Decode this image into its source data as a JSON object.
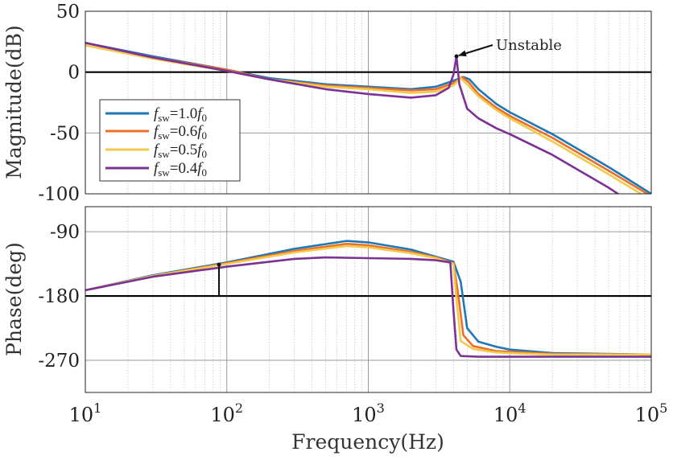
{
  "chart_data": {
    "type": "line",
    "xlabel": "Frequency(Hz)",
    "x_scale": "log",
    "xlim": [
      10,
      100000
    ],
    "x_ticks": [
      {
        "value": 10,
        "base": "10",
        "exp": "1"
      },
      {
        "value": 100,
        "base": "10",
        "exp": "2"
      },
      {
        "value": 1000,
        "base": "10",
        "exp": "3"
      },
      {
        "value": 10000,
        "base": "10",
        "exp": "4"
      },
      {
        "value": 100000,
        "base": "10",
        "exp": "5"
      }
    ],
    "grid": true,
    "legend_position": "left",
    "legend": [
      {
        "italic": "f",
        "sub": "sw",
        "text": "=1.0",
        "italic2": "f",
        "sub2": "0"
      },
      {
        "italic": "f",
        "sub": "sw",
        "text": "=0.6",
        "italic2": "f",
        "sub2": "0"
      },
      {
        "italic": "f",
        "sub": "sw",
        "text": "=0.5",
        "italic2": "f",
        "sub2": "0"
      },
      {
        "italic": "f",
        "sub": "sw",
        "text": "=0.4",
        "italic2": "f",
        "sub2": "0"
      }
    ],
    "colors": [
      "#1f77b4",
      "#e8702a",
      "#f2c94c",
      "#7b3294"
    ],
    "magnitude": {
      "ylabel": "Magnitude(dB)",
      "ylim": [
        -100,
        50
      ],
      "y_ticks": [
        50,
        0,
        -50,
        -100
      ],
      "reference_line": 0,
      "annotation": {
        "text": "Unstable",
        "x": 4200,
        "y": 13
      },
      "series": [
        {
          "points": [
            [
              10,
              24
            ],
            [
              30,
              13
            ],
            [
              100,
              2
            ],
            [
              200,
              -5
            ],
            [
              500,
              -10
            ],
            [
              1000,
              -12
            ],
            [
              2000,
              -14
            ],
            [
              3000,
              -12
            ],
            [
              4000,
              -7
            ],
            [
              4700,
              -4
            ],
            [
              5200,
              -6
            ],
            [
              6000,
              -14
            ],
            [
              8000,
              -26
            ],
            [
              10000,
              -33
            ],
            [
              20000,
              -51
            ],
            [
              50000,
              -78
            ],
            [
              100000,
              -100
            ]
          ]
        },
        {
          "points": [
            [
              10,
              24
            ],
            [
              30,
              12
            ],
            [
              100,
              2
            ],
            [
              200,
              -6
            ],
            [
              500,
              -11
            ],
            [
              1000,
              -13
            ],
            [
              2000,
              -15
            ],
            [
              3000,
              -14
            ],
            [
              4000,
              -9
            ],
            [
              4600,
              -4
            ],
            [
              5100,
              -8
            ],
            [
              6000,
              -18
            ],
            [
              8000,
              -29
            ],
            [
              10000,
              -36
            ],
            [
              20000,
              -54
            ],
            [
              50000,
              -81
            ],
            [
              100000,
              -102
            ]
          ]
        },
        {
          "points": [
            [
              10,
              22
            ],
            [
              30,
              11
            ],
            [
              100,
              1
            ],
            [
              200,
              -6
            ],
            [
              500,
              -12
            ],
            [
              1000,
              -14
            ],
            [
              2000,
              -17
            ],
            [
              3000,
              -16
            ],
            [
              4000,
              -11
            ],
            [
              4500,
              -5
            ],
            [
              5000,
              -10
            ],
            [
              6000,
              -20
            ],
            [
              8000,
              -31
            ],
            [
              10000,
              -38
            ],
            [
              20000,
              -57
            ],
            [
              50000,
              -84
            ],
            [
              100000,
              -105
            ]
          ]
        },
        {
          "points": [
            [
              10,
              24
            ],
            [
              30,
              12
            ],
            [
              100,
              1
            ],
            [
              200,
              -6
            ],
            [
              500,
              -14
            ],
            [
              1000,
              -18
            ],
            [
              2000,
              -21
            ],
            [
              3000,
              -19
            ],
            [
              3700,
              -13
            ],
            [
              4000,
              -2
            ],
            [
              4200,
              13
            ],
            [
              4400,
              -10
            ],
            [
              5000,
              -30
            ],
            [
              6000,
              -38
            ],
            [
              8000,
              -46
            ],
            [
              10000,
              -51
            ],
            [
              20000,
              -68
            ],
            [
              50000,
              -95
            ],
            [
              100000,
              -118
            ]
          ]
        }
      ]
    },
    "phase": {
      "ylabel": "Phase(deg)",
      "ylim": [
        -315,
        -55
      ],
      "y_ticks": [
        -90,
        -180,
        -270
      ],
      "reference_line": -180,
      "marker": {
        "x": 88,
        "y_from": -180,
        "y_to": -136
      },
      "series": [
        {
          "points": [
            [
              10,
              -172
            ],
            [
              30,
              -151
            ],
            [
              100,
              -133
            ],
            [
              300,
              -114
            ],
            [
              700,
              -103
            ],
            [
              1000,
              -105
            ],
            [
              2000,
              -115
            ],
            [
              3000,
              -125
            ],
            [
              4000,
              -132
            ],
            [
              4500,
              -160
            ],
            [
              5000,
              -225
            ],
            [
              6000,
              -244
            ],
            [
              8000,
              -251
            ],
            [
              10000,
              -255
            ],
            [
              20000,
              -260
            ],
            [
              100000,
              -262
            ]
          ]
        },
        {
          "points": [
            [
              10,
              -172
            ],
            [
              30,
              -152
            ],
            [
              100,
              -134
            ],
            [
              300,
              -117
            ],
            [
              700,
              -107
            ],
            [
              1000,
              -109
            ],
            [
              2000,
              -118
            ],
            [
              3000,
              -126
            ],
            [
              4000,
              -134
            ],
            [
              4300,
              -175
            ],
            [
              4700,
              -235
            ],
            [
              5500,
              -250
            ],
            [
              8000,
              -257
            ],
            [
              10000,
              -258
            ],
            [
              20000,
              -261
            ],
            [
              100000,
              -262
            ]
          ]
        },
        {
          "points": [
            [
              10,
              -172
            ],
            [
              30,
              -152
            ],
            [
              100,
              -135
            ],
            [
              300,
              -119
            ],
            [
              700,
              -110
            ],
            [
              1000,
              -112
            ],
            [
              2000,
              -120
            ],
            [
              3000,
              -127
            ],
            [
              4000,
              -135
            ],
            [
              4200,
              -185
            ],
            [
              4500,
              -243
            ],
            [
              5500,
              -254
            ],
            [
              8000,
              -259
            ],
            [
              10000,
              -260
            ],
            [
              20000,
              -262
            ],
            [
              100000,
              -262
            ]
          ]
        },
        {
          "points": [
            [
              10,
              -172
            ],
            [
              30,
              -153
            ],
            [
              100,
              -139
            ],
            [
              300,
              -128
            ],
            [
              500,
              -126
            ],
            [
              1000,
              -127
            ],
            [
              2000,
              -128
            ],
            [
              3000,
              -130
            ],
            [
              3800,
              -133
            ],
            [
              4000,
              -200
            ],
            [
              4200,
              -255
            ],
            [
              4500,
              -264
            ],
            [
              6000,
              -265
            ],
            [
              10000,
              -265
            ],
            [
              100000,
              -265
            ]
          ]
        }
      ]
    }
  }
}
